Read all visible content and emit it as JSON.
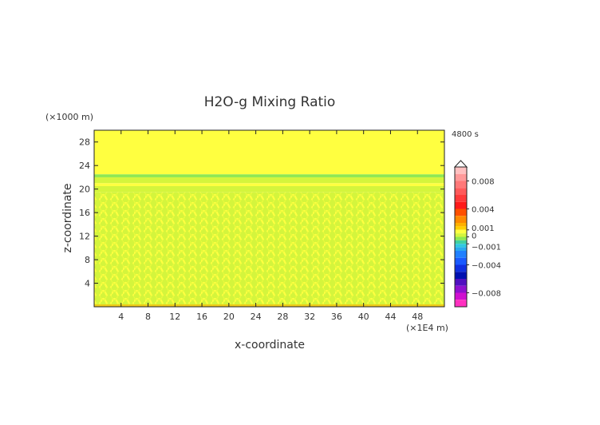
{
  "chart_data": {
    "type": "heatmap",
    "title": "H2O-g Mixing Ratio",
    "xlabel": "x-coordinate",
    "ylabel": "z-coordinate",
    "x_unit": "(×1E4 m)",
    "y_unit": "(×1000 m)",
    "time_label": "4800 s",
    "xlim": [
      0,
      52
    ],
    "ylim": [
      0,
      30
    ],
    "x_ticks": [
      4,
      8,
      12,
      16,
      20,
      24,
      28,
      32,
      36,
      40,
      44,
      48
    ],
    "y_ticks": [
      4,
      8,
      12,
      16,
      20,
      24,
      28
    ],
    "colorbar": {
      "range": [
        -0.01,
        0.01
      ],
      "tick_values": [
        0.008,
        0.004,
        0.001,
        0,
        -0.001,
        -0.004,
        -0.008
      ],
      "tick_labels": [
        "0.008",
        "0.004",
        "0.001",
        "0",
        "−0.001",
        "−0.004",
        "−0.008"
      ],
      "levels": [
        {
          "from": 0.009,
          "to": 0.01,
          "color": "#ffc0c0"
        },
        {
          "from": 0.008,
          "to": 0.009,
          "color": "#ff9a9a"
        },
        {
          "from": 0.007,
          "to": 0.008,
          "color": "#ff7878"
        },
        {
          "from": 0.006,
          "to": 0.007,
          "color": "#ff5a5a"
        },
        {
          "from": 0.005,
          "to": 0.006,
          "color": "#ff3a3a"
        },
        {
          "from": 0.004,
          "to": 0.005,
          "color": "#ff1a1a"
        },
        {
          "from": 0.003,
          "to": 0.004,
          "color": "#ff5000"
        },
        {
          "from": 0.002,
          "to": 0.003,
          "color": "#ff8a00"
        },
        {
          "from": 0.0015,
          "to": 0.002,
          "color": "#ffb000"
        },
        {
          "from": 0.001,
          "to": 0.0015,
          "color": "#ffd000"
        },
        {
          "from": 0.0005,
          "to": 0.001,
          "color": "#ffff40"
        },
        {
          "from": 0.0,
          "to": 0.0005,
          "color": "#d4f53c"
        },
        {
          "from": -0.0005,
          "to": 0.0,
          "color": "#8ee852"
        },
        {
          "from": -0.001,
          "to": -0.0005,
          "color": "#40d0a0"
        },
        {
          "from": -0.0015,
          "to": -0.001,
          "color": "#30c8e0"
        },
        {
          "from": -0.002,
          "to": -0.0015,
          "color": "#2aa8f0"
        },
        {
          "from": -0.003,
          "to": -0.002,
          "color": "#2080ff"
        },
        {
          "from": -0.004,
          "to": -0.003,
          "color": "#1a5aff"
        },
        {
          "from": -0.005,
          "to": -0.004,
          "color": "#1030e0"
        },
        {
          "from": -0.006,
          "to": -0.005,
          "color": "#0010b0"
        },
        {
          "from": -0.007,
          "to": -0.006,
          "color": "#5010c0"
        },
        {
          "from": -0.008,
          "to": -0.007,
          "color": "#9010d0"
        },
        {
          "from": -0.009,
          "to": -0.008,
          "color": "#d010d0"
        },
        {
          "from": -0.01,
          "to": -0.009,
          "color": "#ff30c0"
        }
      ]
    },
    "field_regions": [
      {
        "z_range": [
          22.5,
          30
        ],
        "level_value": 0.0007
      },
      {
        "z_range": [
          22,
          22.5
        ],
        "level_value": -0.0003
      },
      {
        "z_range": [
          21,
          22
        ],
        "level_value": 0.0003
      },
      {
        "z_range": [
          20.5,
          21
        ],
        "level_value": 0.0007
      },
      {
        "z_range": [
          19.5,
          20.5
        ],
        "level_value": 0.0003
      },
      {
        "z_range": [
          0,
          19.5
        ],
        "level_value": 0.0003,
        "note": "wave pattern of alternating yellow and green cells"
      }
    ]
  }
}
